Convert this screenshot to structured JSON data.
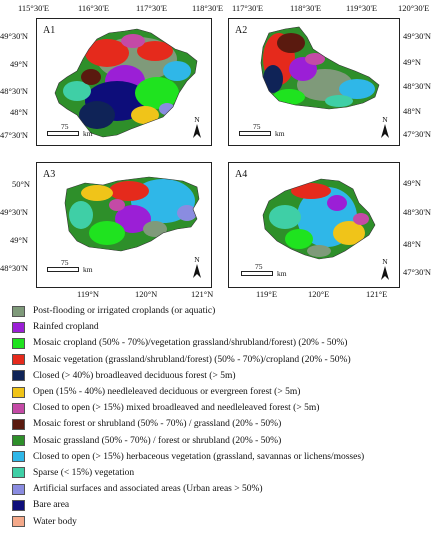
{
  "top_x_labels_left": [
    "115°30'E",
    "116°30'E",
    "117°30'E",
    "118°30'E"
  ],
  "top_x_labels_right": [
    "117°30'E",
    "118°30'E",
    "119°30'E",
    "120°30'E"
  ],
  "a1_y_labels": [
    "49°30'N",
    "49°N",
    "48°30'N",
    "48°N",
    "47°30'N"
  ],
  "a2_y_labels": [
    "49°30'N",
    "49°N",
    "48°30'N",
    "48°N",
    "47°30'N"
  ],
  "a3_y_labels": [
    "50°N",
    "49°30'N",
    "49°N",
    "48°30'N"
  ],
  "a4_y_labels": [
    "49°N",
    "48°30'N",
    "48°N",
    "47°30'N"
  ],
  "bottom_x_labels_left": [
    "119°N",
    "120°N",
    "121°N"
  ],
  "bottom_x_labels_right": [
    "119°E",
    "120°E",
    "121°E"
  ],
  "panels": {
    "a1": {
      "label": "A1",
      "scale": "75",
      "unit": "km",
      "north": "N"
    },
    "a2": {
      "label": "A2",
      "scale": "75",
      "unit": "km",
      "north": "N"
    },
    "a3": {
      "label": "A3",
      "scale": "75",
      "unit": "km",
      "north": "N"
    },
    "a4": {
      "label": "A4",
      "scale": "75",
      "unit": "km",
      "north": "N"
    }
  },
  "legend": [
    {
      "label": "Post-flooding or irrigated croplands (or aquatic)",
      "color": "#7f9a7a"
    },
    {
      "label": "Rainfed cropland",
      "color": "#9b1fd6"
    },
    {
      "label": "Mosaic cropland (50% - 70%)/vegetation grassland/shrubland/forest) (20% - 50%)",
      "color": "#1fe31f"
    },
    {
      "label": "Mosaic vegetation (grassland/shrubland/forest) (50% - 70%)/cropland (20% - 50%)",
      "color": "#e52a1c"
    },
    {
      "label": "Closed (> 40%) broadleaved deciduous forest (> 5m)",
      "color": "#0f2357"
    },
    {
      "label": "Open (15% - 40%) needleleaved deciduous or evergreen forest (> 5m)",
      "color": "#f0c419"
    },
    {
      "label": "Closed to open (> 15%) mixed broadleaved and needleleaved forest (> 5m)",
      "color": "#c44aa6"
    },
    {
      "label": "Mosaic forest or shrubland (50% - 70%) / grassland (20% - 50%)",
      "color": "#5a1a0f"
    },
    {
      "label": "Mosaic grassland (50% - 70%) / forest or shrubland (20% - 50%)",
      "color": "#2e8f2a"
    },
    {
      "label": "Closed to open (> 15%) herbaceous vegetation (grassland, savannas or lichens/mosses)",
      "color": "#2fb7e8"
    },
    {
      "label": "Sparse (< 15%) vegetation",
      "color": "#3fcfa6"
    },
    {
      "label": "Artificial surfaces and associated areas (Urban areas > 50%)",
      "color": "#8a8ce0"
    },
    {
      "label": "Bare area",
      "color": "#0d0d7a"
    },
    {
      "label": "Water body",
      "color": "#f4a98a"
    }
  ]
}
